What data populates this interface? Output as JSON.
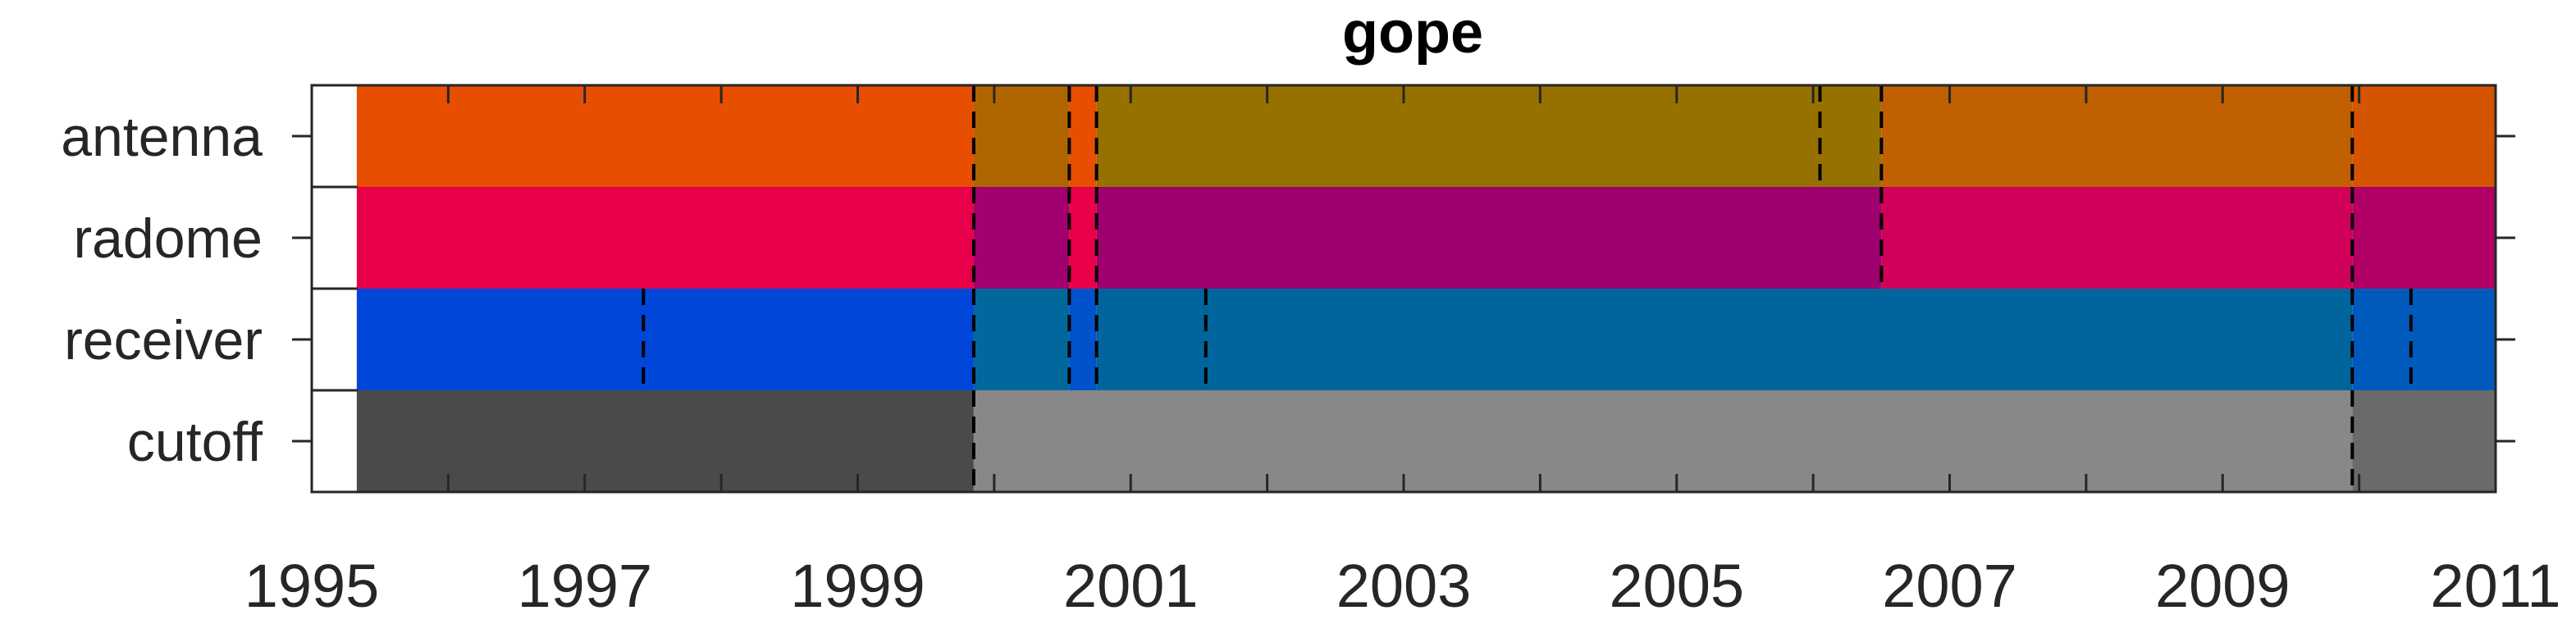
{
  "chart_data": {
    "type": "timeline",
    "title": "gope",
    "xlabel": "",
    "ylabel": "",
    "xlim": [
      1995,
      2011
    ],
    "x_ticks": [
      1995,
      1996,
      1997,
      1998,
      1999,
      2000,
      2001,
      2002,
      2003,
      2004,
      2005,
      2006,
      2007,
      2008,
      2009,
      2010,
      2011
    ],
    "x_tick_labels": [
      {
        "value": 1995,
        "label": "1995"
      },
      {
        "value": 1997,
        "label": "1997"
      },
      {
        "value": 1999,
        "label": "1999"
      },
      {
        "value": 2001,
        "label": "2001"
      },
      {
        "value": 2003,
        "label": "2003"
      },
      {
        "value": 2005,
        "label": "2005"
      },
      {
        "value": 2007,
        "label": "2007"
      },
      {
        "value": 2009,
        "label": "2009"
      },
      {
        "value": 2011,
        "label": "2011"
      }
    ],
    "rows": [
      {
        "label": "antenna",
        "segments": [
          {
            "start": 1995.33,
            "end": 1999.85,
            "color": "#e84e00"
          },
          {
            "start": 1999.85,
            "end": 2000.55,
            "color": "#b06600"
          },
          {
            "start": 2000.55,
            "end": 2000.75,
            "color": "#e84e00"
          },
          {
            "start": 2000.75,
            "end": 2006.5,
            "color": "#977100"
          },
          {
            "start": 2006.5,
            "end": 2009.95,
            "color": "#c06000"
          },
          {
            "start": 2009.95,
            "end": 2011.0,
            "color": "#d55400"
          }
        ],
        "changes": [
          1999.85,
          2000.55,
          2000.75,
          2006.05,
          2006.5,
          2009.95
        ]
      },
      {
        "label": "radome",
        "segments": [
          {
            "start": 1995.33,
            "end": 1999.85,
            "color": "#e8004a"
          },
          {
            "start": 1999.85,
            "end": 2000.55,
            "color": "#a2006e"
          },
          {
            "start": 2000.55,
            "end": 2000.75,
            "color": "#e8004a"
          },
          {
            "start": 2000.75,
            "end": 2006.5,
            "color": "#9e006e"
          },
          {
            "start": 2006.5,
            "end": 2009.95,
            "color": "#d0005a"
          },
          {
            "start": 2009.95,
            "end": 2011.0,
            "color": "#b00066"
          }
        ],
        "changes": [
          1999.85,
          2000.55,
          2000.75,
          2006.5,
          2009.95
        ]
      },
      {
        "label": "receiver",
        "segments": [
          {
            "start": 1995.33,
            "end": 1999.85,
            "color": "#0047d9"
          },
          {
            "start": 1999.85,
            "end": 2000.55,
            "color": "#00689d"
          },
          {
            "start": 2000.55,
            "end": 2000.75,
            "color": "#0052cc"
          },
          {
            "start": 2000.75,
            "end": 2009.95,
            "color": "#00659c"
          },
          {
            "start": 2009.95,
            "end": 2011.0,
            "color": "#005abc"
          }
        ],
        "changes": [
          1997.43,
          1999.85,
          2000.55,
          2000.75,
          2001.55,
          2009.95,
          2010.38
        ]
      },
      {
        "label": "cutoff",
        "segments": [
          {
            "start": 1995.33,
            "end": 1999.85,
            "color": "#4a4a4a"
          },
          {
            "start": 1999.85,
            "end": 2009.95,
            "color": "#888888"
          },
          {
            "start": 2009.95,
            "end": 2011.0,
            "color": "#6a6a6a"
          }
        ],
        "changes": [
          1999.85,
          2009.95
        ]
      }
    ]
  }
}
